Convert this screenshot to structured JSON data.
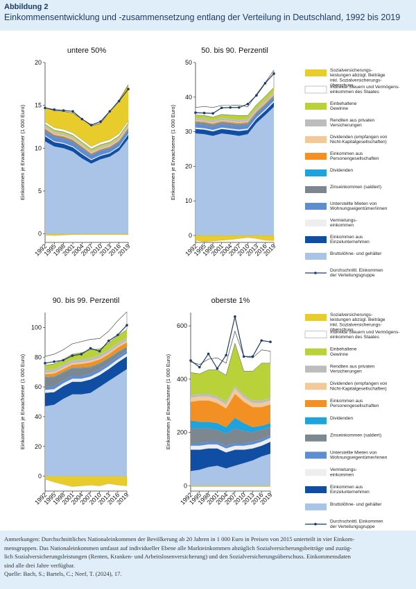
{
  "header": {
    "label": "Abbildung 2",
    "title": "Einkommensentwicklung und -zusammensetzung entlang der Verteilung in Deutschland, 1992 bis 2019"
  },
  "footer": {
    "line1": "Anmerkungen: Durchschnittliches Nationaleinkommen der Bevölkerung ab 20 Jahren in 1 000 Euro in Preisen von 2015 unterteilt in vier Einkom-",
    "line2": "mensgruppen. Das Nationaleinkommen umfasst auf individueller Ebene alle Markteinkommen abzüglich Sozialversicherungsbeiträge und zuzüg-",
    "line3": "lich Sozialversicherungsleistungen (Renten, Kranken- und Arbeitslosenversicherung) und den Sozialversicherungsüberschuss. Einkommensdaten",
    "line4": "sind alle drei Jahre verfügbar.",
    "source": "Quelle: Bach, S.; Bartels, C.; Neef, T. (2024), 17."
  },
  "legend": [
    {
      "label": "Sozialversicherungs-|leistungen abzügl. Beiträge|inkl. Sozialversicherungs-|überschuss",
      "color": "#e8cc2c"
    },
    {
      "label": "Indirekte Steuern und Vermögens-|einkommen des Staates",
      "color": "#ffffff"
    },
    {
      "label": "Einbehaltene|Gewinne",
      "color": "#b9d23a"
    },
    {
      "label": "Renditen aus privaten|Versicherungen",
      "color": "#bdbdbd"
    },
    {
      "label": "Dividenden (empfangen von|Nicht-Kapitalgesellschaften)",
      "color": "#f3c99a"
    },
    {
      "label": "Einkommen aus|Personengesellschaften",
      "color": "#f29023"
    },
    {
      "label": "Dividenden",
      "color": "#1ea3dc"
    },
    {
      "label": "Zinseinkommen (saldiert)",
      "color": "#7d8790"
    },
    {
      "label": "Unterstellte Mieten von|Wohnungseigentümer/innen",
      "color": "#5e8ed0"
    },
    {
      "label": "Vermietungs-|einkommen",
      "color": "#eeeeee"
    },
    {
      "label": "Einkommen aus|Einzelunternehmen",
      "color": "#0f4ea3"
    },
    {
      "label": "Bruttolöhne- und gehälter",
      "color": "#a9c4e6"
    },
    {
      "label": "Durchschnittl. Einkommen|der Verteilungsgruppe",
      "color": "#1d3b68",
      "line": true
    }
  ],
  "chart_data": [
    {
      "type": "area",
      "title": "untere 50%",
      "ylabel": "Einkommen je Erwachsener (1 000 Euro)",
      "x": [
        1992,
        1995,
        1998,
        2001,
        2004,
        2007,
        2010,
        2013,
        2016,
        2019
      ],
      "ylim": [
        -1,
        20
      ],
      "yticks": [
        0,
        5,
        10,
        15,
        20
      ],
      "series": [
        {
          "name": "Bruttolöhne- und gehälter",
          "values": [
            10.8,
            10.2,
            10.0,
            9.6,
            8.8,
            8.2,
            8.7,
            9.0,
            9.7,
            11.1
          ]
        },
        {
          "name": "Einkommen aus Einzelunternehmen",
          "values": [
            0.6,
            0.5,
            0.5,
            0.5,
            0.5,
            0.4,
            0.4,
            0.4,
            0.4,
            0.5
          ]
        },
        {
          "name": "Vermietungseinkommen",
          "values": [
            0.1,
            0.1,
            0.1,
            0.1,
            0.1,
            0.1,
            0.1,
            0.1,
            0.1,
            0.1
          ]
        },
        {
          "name": "Unterstellte Mieten von Wohnungseigentümer/innen",
          "values": [
            0.5,
            0.5,
            0.5,
            0.5,
            0.5,
            0.5,
            0.5,
            0.5,
            0.5,
            0.5
          ]
        },
        {
          "name": "Zinseinkommen (saldiert)",
          "values": [
            0.2,
            0.2,
            0.2,
            0.2,
            0.2,
            0.1,
            0.1,
            0.1,
            0.1,
            0.1
          ]
        },
        {
          "name": "Dividenden",
          "values": [
            0,
            0,
            0,
            0,
            0,
            0,
            0,
            0,
            0,
            0
          ]
        },
        {
          "name": "Einkommen aus Personengesellschaften",
          "values": [
            0.1,
            0.1,
            0.1,
            0.1,
            0.1,
            0.1,
            0.1,
            0.1,
            0.1,
            0.1
          ]
        },
        {
          "name": "Dividenden (empfangen von Nicht-Kapitalgesellschaften)",
          "values": [
            0.1,
            0.1,
            0.1,
            0.1,
            0.1,
            0.1,
            0.1,
            0.1,
            0.1,
            0.1
          ]
        },
        {
          "name": "Renditen aus privaten Versicherungen",
          "values": [
            0.2,
            0.2,
            0.2,
            0.2,
            0.2,
            0.2,
            0.2,
            0.2,
            0.2,
            0.2
          ]
        },
        {
          "name": "Einbehaltene Gewinne",
          "values": [
            0.2,
            0.2,
            0.2,
            0.2,
            0.2,
            0.2,
            0.2,
            0.2,
            0.2,
            0.2
          ]
        },
        {
          "name": "Indirekte Steuern und Vermögenseinkommen des Staates",
          "values": [
            0.3,
            0.3,
            0.3,
            0.3,
            0.3,
            0.3,
            0.3,
            0.3,
            0.3,
            0.3
          ]
        },
        {
          "name": "Sozialversicherungsleistungen abzügl. Beiträge inkl. Sozialversicherungsüberschuss",
          "values": [
            1.6,
            2.0,
            2.1,
            2.3,
            2.4,
            2.4,
            2.2,
            3.3,
            3.9,
            4.2
          ]
        }
      ],
      "neg": [
        -0.15,
        -0.2,
        -0.15,
        -0.1,
        -0.1,
        -0.1,
        -0.1,
        -0.1,
        -0.1,
        -0.1
      ],
      "avg": [
        14.7,
        14.5,
        14.4,
        14.3,
        13.4,
        12.7,
        13.1,
        14.3,
        15.5,
        16.9
      ]
    },
    {
      "type": "area",
      "title": "50. bis 90. Perzentil",
      "ylabel": "Einkommen je Erwachsener (1 000 Euro)",
      "x": [
        1992,
        1995,
        1998,
        2001,
        2004,
        2007,
        2010,
        2013,
        2016,
        2019
      ],
      "ylim": [
        -2,
        50
      ],
      "yticks": [
        0,
        10,
        20,
        30,
        40,
        50
      ],
      "series": [
        {
          "name": "Bruttolöhne- und gehälter",
          "values": [
            29.5,
            29.3,
            28.8,
            29.5,
            29.2,
            28.8,
            29.3,
            32.5,
            34.8,
            37.2
          ]
        },
        {
          "name": "Einkommen aus Einzelunternehmen",
          "values": [
            1.3,
            1.3,
            1.3,
            1.3,
            1.3,
            1.4,
            1.2,
            1.2,
            1.2,
            1.3
          ]
        },
        {
          "name": "Vermietungseinkommen",
          "values": [
            0.4,
            0.4,
            0.4,
            0.4,
            0.4,
            0.4,
            0.4,
            0.4,
            0.4,
            0.4
          ]
        },
        {
          "name": "Unterstellte Mieten von Wohnungseigentümer/innen",
          "values": [
            1.0,
            1.0,
            1.0,
            1.0,
            1.0,
            1.1,
            1.1,
            1.1,
            1.1,
            1.1
          ]
        },
        {
          "name": "Zinseinkommen (saldiert)",
          "values": [
            0.5,
            0.5,
            0.5,
            0.5,
            0.5,
            0.4,
            0.4,
            0.3,
            0.3,
            0.3
          ]
        },
        {
          "name": "Dividenden",
          "values": [
            0.1,
            0.1,
            0.1,
            0.1,
            0.1,
            0.1,
            0.1,
            0.1,
            0.1,
            0.1
          ]
        },
        {
          "name": "Einkommen aus Personengesellschaften",
          "values": [
            0.3,
            0.3,
            0.3,
            0.3,
            0.3,
            0.3,
            0.3,
            0.3,
            0.3,
            0.3
          ]
        },
        {
          "name": "Dividenden (empfangen von Nicht-Kapitalgesellschaften)",
          "values": [
            0.2,
            0.2,
            0.2,
            0.2,
            0.2,
            0.2,
            0.2,
            0.2,
            0.2,
            0.2
          ]
        },
        {
          "name": "Renditen aus privaten Versicherungen",
          "values": [
            0.7,
            0.7,
            0.7,
            0.7,
            0.7,
            0.7,
            0.7,
            0.7,
            0.7,
            0.7
          ]
        },
        {
          "name": "Einbehaltene Gewinne",
          "values": [
            0.8,
            0.9,
            0.9,
            1.0,
            1.1,
            1.3,
            1.0,
            1.0,
            1.1,
            1.2
          ]
        },
        {
          "name": "Indirekte Steuern und Vermögenseinkommen des Staates",
          "values": [
            2.2,
            2.6,
            2.8,
            2.6,
            2.8,
            3.0,
            2.5,
            3.0,
            4.0,
            5.0
          ]
        },
        {
          "name": "Sozialversicherungsleistungen abzügl. Beiträge inkl. Sozialversicherungsüberschuss",
          "values": [
            0,
            0,
            0,
            0,
            0,
            0,
            0,
            0,
            0,
            0
          ]
        }
      ],
      "neg": [
        -1.4,
        -1.8,
        -1.6,
        -1.4,
        -1.2,
        -0.9,
        -0.6,
        -0.9,
        -1.4,
        -1.5
      ],
      "avg": [
        35.5,
        35.4,
        35.3,
        36.9,
        37.0,
        37.0,
        38.0,
        40.5,
        44.0,
        46.8
      ]
    },
    {
      "type": "area",
      "title": "90. bis 99. Perzentil",
      "ylabel": "Einkommen je Erwachsener (1 000 Euro)",
      "x": [
        1992,
        1995,
        1998,
        2001,
        2004,
        2007,
        2010,
        2013,
        2016,
        2019
      ],
      "ylim": [
        -10,
        110
      ],
      "yticks": [
        0,
        20,
        40,
        60,
        80,
        100
      ],
      "series": [
        {
          "name": "Bruttolöhne- und gehälter",
          "values": [
            47.0,
            48.0,
            52.0,
            55.0,
            55.0,
            56.0,
            60.0,
            64.0,
            68.0,
            72.0
          ]
        },
        {
          "name": "Einkommen aus Einzelunternehmen",
          "values": [
            9.0,
            8.5,
            8.5,
            8.5,
            8.5,
            9.0,
            8.0,
            8.0,
            8.5,
            8.5
          ]
        },
        {
          "name": "Vermietungseinkommen",
          "values": [
            2.0,
            2.0,
            2.0,
            2.0,
            2.0,
            2.0,
            2.0,
            2.0,
            2.0,
            2.0
          ]
        },
        {
          "name": "Unterstellte Mieten von Wohnungseigentümer/innen",
          "values": [
            2.0,
            2.0,
            2.0,
            2.0,
            2.0,
            2.0,
            2.0,
            2.0,
            2.0,
            2.0
          ]
        },
        {
          "name": "Zinseinkommen (saldiert)",
          "values": [
            6.0,
            6.0,
            5.0,
            5.0,
            5.0,
            4.0,
            3.5,
            3.0,
            2.5,
            2.0
          ]
        },
        {
          "name": "Dividenden",
          "values": [
            0.5,
            0.5,
            0.5,
            0.5,
            0.5,
            0.5,
            0.5,
            0.5,
            0.5,
            0.5
          ]
        },
        {
          "name": "Einkommen aus Personengesellschaften",
          "values": [
            2.0,
            2.0,
            2.0,
            2.0,
            2.5,
            3.0,
            2.5,
            2.5,
            3.0,
            3.0
          ]
        },
        {
          "name": "Dividenden (empfangen von Nicht-Kapitalgesellschaften)",
          "values": [
            1.0,
            1.0,
            1.0,
            1.0,
            1.0,
            1.0,
            1.0,
            1.0,
            1.0,
            1.0
          ]
        },
        {
          "name": "Renditen aus privaten Versicherungen",
          "values": [
            2.0,
            2.0,
            2.0,
            2.0,
            2.0,
            2.0,
            2.0,
            2.0,
            2.0,
            2.0
          ]
        },
        {
          "name": "Einbehaltene Gewinne",
          "values": [
            3.0,
            3.5,
            3.5,
            4.0,
            4.5,
            5.5,
            4.0,
            4.5,
            5.0,
            5.5
          ]
        },
        {
          "name": "Indirekte Steuern und Vermögenseinkommen des Staates",
          "values": [
            6.0,
            6.5,
            6.5,
            7.0,
            7.5,
            7.0,
            7.0,
            8.0,
            10.0,
            12.0
          ]
        },
        {
          "name": "Sozialversicherungsleistungen abzügl. Beiträge inkl. Sozialversicherungsüberschuss",
          "values": [
            0,
            0,
            0,
            0,
            0,
            0,
            0,
            0,
            0,
            0
          ]
        }
      ],
      "neg": [
        -2.0,
        -4.0,
        -5.5,
        -7.0,
        -6.5,
        -6.0,
        -6.5,
        -5.0,
        -6.0,
        -6.5
      ],
      "avg": [
        76.0,
        77.0,
        78.0,
        81.0,
        82.0,
        86.0,
        84.0,
        91.0,
        95.0,
        101.5
      ]
    },
    {
      "type": "area",
      "title": "oberste 1%",
      "ylabel": "Einkommen je Erwachsener (1 000 Euro)",
      "x": [
        1992,
        1995,
        1998,
        2001,
        2004,
        2007,
        2010,
        2013,
        2016,
        2019
      ],
      "ylim": [
        -20,
        650
      ],
      "yticks": [
        0,
        200,
        400,
        600
      ],
      "series": [
        {
          "name": "Bruttolöhne- und gehälter",
          "values": [
            55,
            60,
            70,
            75,
            65,
            75,
            85,
            95,
            110,
            120
          ]
        },
        {
          "name": "Einkommen aus Einzelunternehmen",
          "values": [
            80,
            75,
            70,
            65,
            60,
            60,
            50,
            45,
            40,
            45
          ]
        },
        {
          "name": "Vermietungseinkommen",
          "values": [
            15,
            15,
            15,
            15,
            15,
            15,
            15,
            15,
            15,
            15
          ]
        },
        {
          "name": "Unterstellte Mieten von Wohnungseigentümer/innen",
          "values": [
            10,
            10,
            10,
            10,
            10,
            10,
            10,
            10,
            10,
            10
          ]
        },
        {
          "name": "Zinseinkommen (saldiert)",
          "values": [
            55,
            55,
            50,
            45,
            45,
            55,
            45,
            35,
            35,
            30
          ]
        },
        {
          "name": "Dividenden",
          "values": [
            30,
            25,
            25,
            25,
            25,
            40,
            30,
            20,
            15,
            15
          ]
        },
        {
          "name": "Einkommen aus Personengesellschaften",
          "values": [
            70,
            80,
            80,
            75,
            70,
            90,
            80,
            75,
            70,
            70
          ]
        },
        {
          "name": "Dividenden (empfangen von Nicht-Kapitalgesellschaften)",
          "values": [
            15,
            15,
            15,
            15,
            15,
            20,
            15,
            15,
            15,
            15
          ]
        },
        {
          "name": "Renditen aus privaten Versicherungen",
          "values": [
            10,
            10,
            10,
            10,
            10,
            10,
            10,
            10,
            10,
            10
          ]
        },
        {
          "name": "Einbehaltene Gewinne",
          "values": [
            85,
            75,
            90,
            100,
            100,
            160,
            90,
            110,
            140,
            130
          ]
        },
        {
          "name": "Indirekte Steuern und Vermögenseinkommen des Staates",
          "values": [
            40,
            35,
            40,
            45,
            45,
            45,
            55,
            50,
            50,
            45
          ]
        },
        {
          "name": "Sozialversicherungsleistungen abzügl. Beiträge inkl. Sozialversicherungsüberschuss",
          "values": [
            0,
            0,
            0,
            0,
            0,
            0,
            0,
            0,
            0,
            0
          ]
        }
      ],
      "neg": [
        -3,
        -3,
        -3,
        -3,
        -3,
        -3,
        -3,
        -3,
        -3,
        -3
      ],
      "avg": [
        470,
        445,
        495,
        440,
        490,
        635,
        485,
        485,
        545,
        540
      ]
    }
  ]
}
